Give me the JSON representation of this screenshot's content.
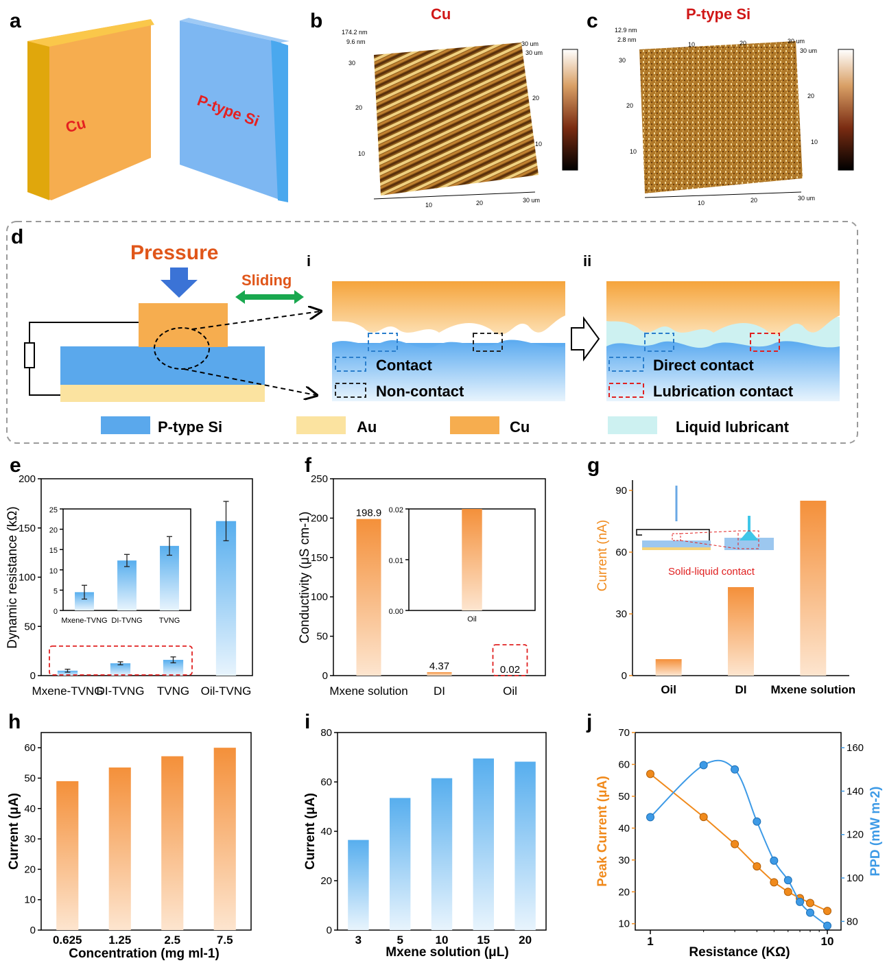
{
  "panel_labels": {
    "a": "a",
    "b": "b",
    "c": "c",
    "d": "d",
    "e": "e",
    "f": "f",
    "g": "g",
    "h": "h",
    "i": "i",
    "j": "j"
  },
  "panel_a": {
    "left_label": "Cu",
    "right_label": "P-type Si"
  },
  "panel_b": {
    "title": "Cu",
    "zmax": "174.2 nm",
    "zmin": "9.6 nm",
    "x_ticks": [
      "10",
      "20",
      "30 um"
    ],
    "y_ticks": [
      "10",
      "20",
      "30"
    ],
    "right_ticks": [
      "10",
      "20",
      "30 um"
    ],
    "top_ticks": [
      "30 um"
    ]
  },
  "panel_c": {
    "title": "P-type Si",
    "zmax": "12.9 nm",
    "zmin": "2.8 nm",
    "x_ticks": [
      "10",
      "20",
      "30 um"
    ],
    "y_ticks": [
      "10",
      "20",
      "30"
    ],
    "right_ticks": [
      "10",
      "20",
      "30 um"
    ],
    "top_ticks": [
      "10",
      "20",
      "30 um"
    ]
  },
  "panel_d": {
    "pressure": "Pressure",
    "sliding": "Sliding",
    "sub_i": "i",
    "sub_ii": "ii",
    "contact": "Contact",
    "non_contact": "Non-contact",
    "direct_contact": "Direct contact",
    "lubrication_contact": "Lubrication contact",
    "legend": [
      "P-type Si",
      "Au",
      "Cu",
      "Liquid lubricant"
    ],
    "colors": {
      "si": "#5aa8ec",
      "au": "#fbe3a0",
      "cu": "#f6ad4f",
      "lubricant": "#cdf1f1"
    }
  },
  "chart_data": [
    {
      "panel": "e",
      "type": "bar",
      "categories": [
        "Mxene-TVNG",
        "DI-TVNG",
        "TVNG",
        "Oil-TVNG"
      ],
      "values": [
        5.0,
        12.5,
        16.0,
        157.0
      ],
      "errors": [
        1.5,
        1.5,
        3,
        20
      ],
      "ylabel": "Dynamic resistance (kΩ)",
      "ylim": [
        0,
        200
      ],
      "yticks": [
        0,
        50,
        100,
        150,
        200
      ],
      "inset": {
        "categories": [
          "Mxene-TVNG",
          "DI-TVNG",
          "TVNG"
        ],
        "values": [
          4.5,
          12.3,
          15.9
        ],
        "errors": [
          1.7,
          1.5,
          2.3
        ],
        "ylim": [
          0,
          25
        ],
        "yticks": [
          0,
          5,
          10,
          15,
          20,
          25
        ]
      }
    },
    {
      "panel": "f",
      "type": "bar",
      "categories": [
        "Mxene solution",
        "DI",
        "Oil"
      ],
      "values": [
        198.9,
        4.37,
        0.02
      ],
      "value_labels": [
        "198.9",
        "4.37",
        "0.02"
      ],
      "ylabel": "Conductivity (μS cm-1)",
      "ylim": [
        0,
        250
      ],
      "yticks": [
        0,
        50,
        100,
        150,
        200,
        250
      ],
      "inset": {
        "categories": [
          "Oil"
        ],
        "values": [
          0.02
        ],
        "ylim": [
          0,
          0.02
        ],
        "yticks": [
          "0.00",
          "0.01",
          "0.02"
        ]
      }
    },
    {
      "panel": "g",
      "type": "bar",
      "categories": [
        "Oil",
        "DI",
        "Mxene solution"
      ],
      "values": [
        8,
        43,
        85
      ],
      "ylabel": "Current (nA)",
      "ylim": [
        0,
        95
      ],
      "yticks": [
        0,
        30,
        60,
        90
      ],
      "inset_label": "Solid-liquid contact"
    },
    {
      "panel": "h",
      "type": "bar",
      "categories": [
        "0.625",
        "1.25",
        "2.5",
        "7.5"
      ],
      "values": [
        49,
        53.5,
        57.2,
        60
      ],
      "ylabel": "Current (μA)",
      "xlabel": "Concentration (mg ml-1)",
      "ylim": [
        0,
        65
      ],
      "yticks": [
        0,
        10,
        20,
        30,
        40,
        50,
        60
      ]
    },
    {
      "panel": "i",
      "type": "bar",
      "categories": [
        "3",
        "5",
        "10",
        "15",
        "20"
      ],
      "values": [
        36.5,
        53.5,
        61.5,
        69.5,
        68.2
      ],
      "ylabel": "Current (μA)",
      "xlabel": "Mxene solution (μL)",
      "ylim": [
        0,
        80
      ],
      "yticks": [
        0,
        20,
        40,
        60,
        80
      ]
    },
    {
      "panel": "j",
      "type": "line",
      "x": [
        1,
        2,
        3,
        4,
        5,
        6,
        7,
        8,
        10
      ],
      "series": [
        {
          "name": "Peak Current (μA)",
          "values": [
            57,
            43.5,
            35,
            28,
            23,
            20,
            18,
            16.5,
            14
          ],
          "color": "#f08a1c"
        },
        {
          "name": "PPD (mW m-2)",
          "values": [
            128,
            152,
            150,
            126,
            108,
            99,
            89,
            84,
            78
          ],
          "color": "#3d9ae6"
        }
      ],
      "ylabel": "Peak Current (μA)",
      "y2label": "PPD (mW m-2)",
      "xlabel": "Resistance (KΩ)",
      "xscale": "log",
      "xticks": [
        "1",
        "10"
      ],
      "ylim": [
        8,
        70
      ],
      "yticks": [
        10,
        20,
        30,
        40,
        50,
        60,
        70
      ],
      "y2lim": [
        76,
        167
      ],
      "y2ticks": [
        80,
        100,
        120,
        140,
        160
      ]
    }
  ]
}
